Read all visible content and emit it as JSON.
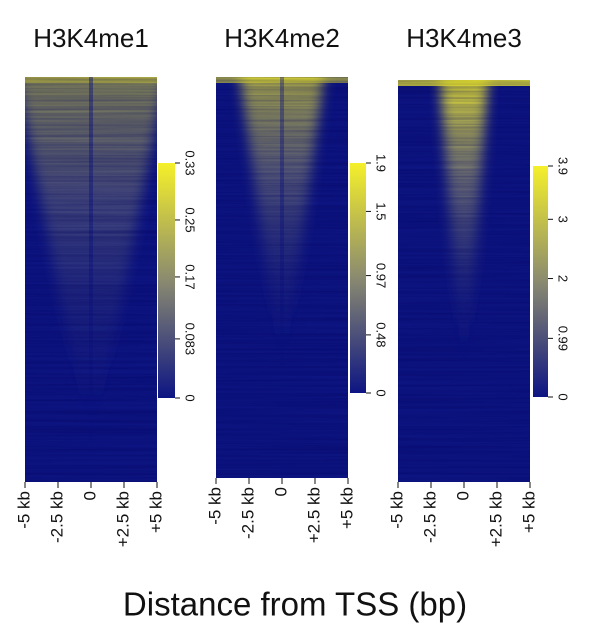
{
  "chart_data": [
    {
      "type": "heatmap",
      "title": "H3K4me1",
      "xlim": [
        -5000,
        5000
      ],
      "xticks": [
        {
          "value": -5000,
          "label": "-5 kb"
        },
        {
          "value": -2500,
          "label": "-2.5 kb"
        },
        0,
        {
          "value": 2500,
          "label": "+2.5 kb"
        },
        {
          "value": 5000,
          "label": "+5 kb"
        }
      ],
      "clim": [
        0,
        0.33
      ],
      "cticks": [
        0,
        0.083,
        0.17,
        0.25,
        0.33
      ],
      "colorscale": [
        "#0d1583",
        "#8a8a70",
        "#f5f02a"
      ]
    },
    {
      "type": "heatmap",
      "title": "H3K4me2",
      "xlim": [
        -5000,
        5000
      ],
      "xticks": [
        {
          "value": -5000,
          "label": "-5 kb"
        },
        {
          "value": -2500,
          "label": "-2.5 kb"
        },
        0,
        {
          "value": 2500,
          "label": "+2.5 kb"
        },
        {
          "value": 5000,
          "label": "+5 kb"
        }
      ],
      "clim": [
        0,
        1.9
      ],
      "cticks": [
        0,
        0.48,
        0.97,
        1.5,
        1.9
      ],
      "colorscale": [
        "#0d1583",
        "#8a8a70",
        "#f5f02a"
      ]
    },
    {
      "type": "heatmap",
      "title": "H3K4me3",
      "xlim": [
        -5000,
        5000
      ],
      "xticks": [
        {
          "value": -5000,
          "label": "-5 kb"
        },
        {
          "value": -2500,
          "label": "-2.5 kb"
        },
        0,
        {
          "value": 2500,
          "label": "+2.5 kb"
        },
        {
          "value": 5000,
          "label": "+5 kb"
        }
      ],
      "clim": [
        0,
        3.9
      ],
      "cticks": [
        0,
        0.99,
        2,
        3,
        3.9
      ],
      "colorscale": [
        "#0d1583",
        "#8a8a70",
        "#f5f02a"
      ]
    }
  ],
  "xlabel": "Distance from TSS (bp)"
}
